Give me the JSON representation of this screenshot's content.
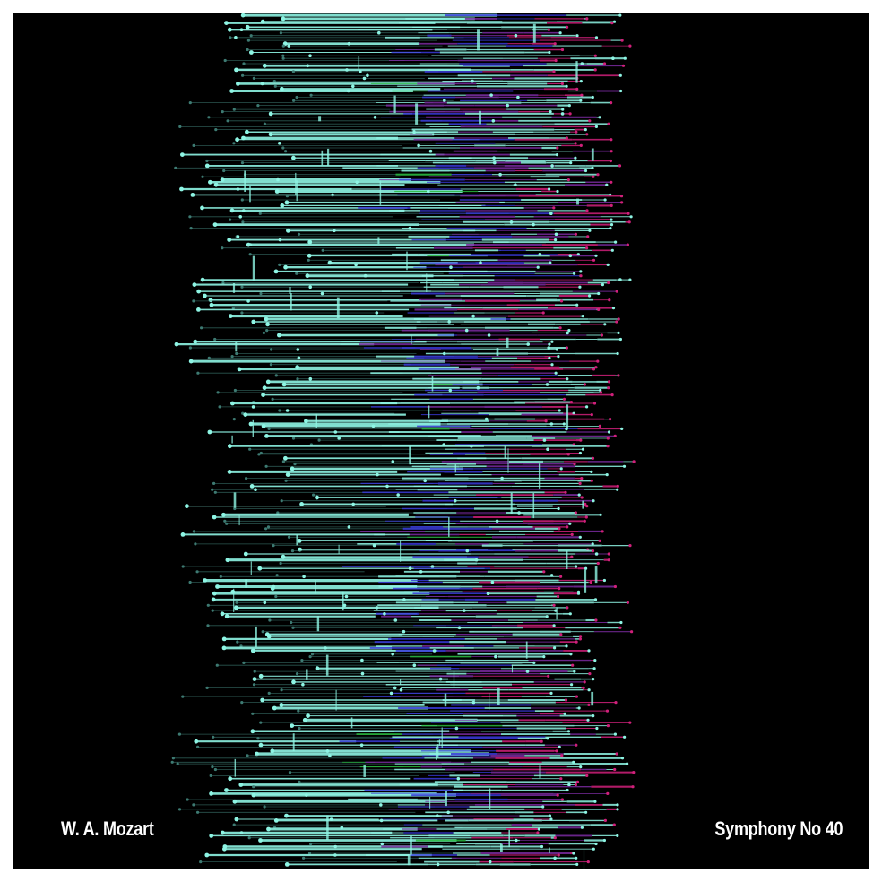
{
  "artwork": {
    "composer": "W. A. Mozart",
    "work": "Symphony No 40"
  },
  "palette": {
    "background": "#000000",
    "border": "#ffffff",
    "primary": "#8ef5e4",
    "mint": "#5fe3b0",
    "green": "#28b83c",
    "blue": "#3a3ad8",
    "purple": "#7a2aa0",
    "magenta": "#d0207a",
    "dim": "#3d7a72"
  }
}
